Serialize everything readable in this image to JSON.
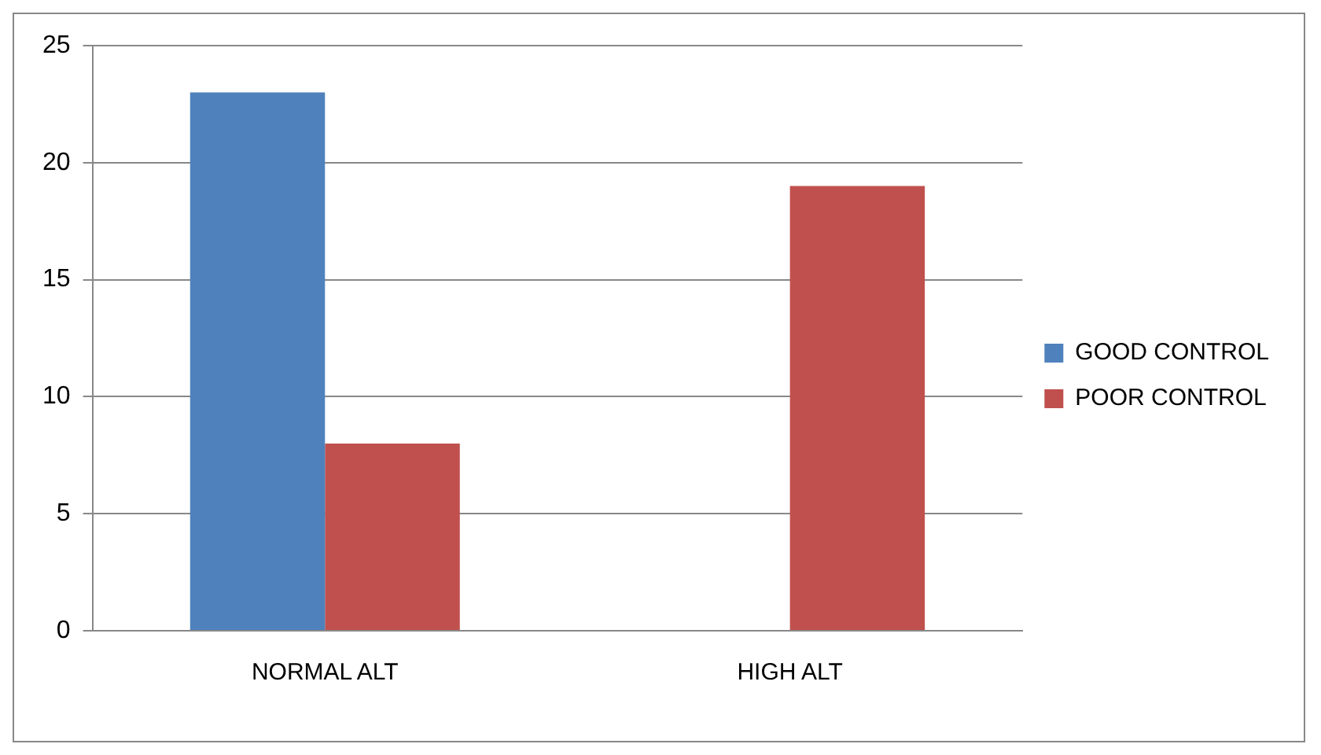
{
  "chart_data": {
    "type": "bar",
    "categories": [
      "NORMAL ALT",
      "HIGH ALT"
    ],
    "series": [
      {
        "name": "GOOD CONTROL",
        "color": "#4f81bd",
        "values": [
          23,
          0
        ]
      },
      {
        "name": "POOR CONTROL",
        "color": "#c0504d",
        "values": [
          8,
          19
        ]
      }
    ],
    "ylim": [
      0,
      25
    ],
    "yticks": [
      0,
      5,
      10,
      15,
      20,
      25
    ],
    "grid": "y",
    "legend": "right"
  }
}
